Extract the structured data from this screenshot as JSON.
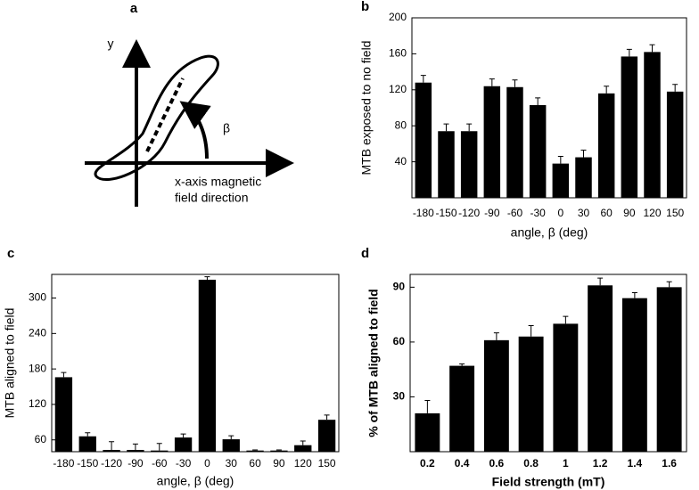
{
  "diagram": {
    "panel_label": "a",
    "y_label": "y",
    "angle_label": "β",
    "caption": [
      "x-axis magnetic",
      "field direction"
    ]
  },
  "chart_data": [
    {
      "type": "bar",
      "panel_label": "b",
      "xlabel": "angle, β (deg)",
      "ylabel": "MTB exposed to no field",
      "categories": [
        "-180",
        "-150",
        "-120",
        "-90",
        "-60",
        "-30",
        "0",
        "30",
        "60",
        "90",
        "120",
        "150"
      ],
      "values": [
        128,
        74,
        74,
        124,
        123,
        103,
        38,
        45,
        116,
        157,
        162,
        118
      ],
      "errors": [
        8,
        8,
        8,
        8,
        8,
        8,
        8,
        8,
        8,
        8,
        8,
        8
      ],
      "color": "#000000",
      "ylim": [
        0,
        200
      ],
      "yticks": [
        40,
        80,
        120,
        160,
        200
      ],
      "bold_labels": false
    },
    {
      "type": "bar",
      "panel_label": "c",
      "xlabel": "angle, β (deg)",
      "ylabel": "MTB aligned to field",
      "categories": [
        "-180",
        "-150",
        "-120",
        "-90",
        "-60",
        "-30",
        "0",
        "30",
        "60",
        "90",
        "120",
        "150"
      ],
      "values": [
        166,
        66,
        43,
        43,
        42,
        64,
        331,
        61,
        42,
        42,
        51,
        94
      ],
      "errors": [
        8,
        6,
        14,
        10,
        12,
        6,
        5,
        6,
        1,
        1,
        7,
        8
      ],
      "color": "#000000",
      "ylim": [
        40,
        340
      ],
      "yticks": [
        60,
        120,
        180,
        240,
        300
      ],
      "bold_labels": false
    },
    {
      "type": "bar",
      "panel_label": "d",
      "xlabel": "Field strength (mT)",
      "ylabel": "% of MTB aligned to field",
      "categories": [
        "0.2",
        "0.4",
        "0.6",
        "0.8",
        "1",
        "1.2",
        "1.4",
        "1.6"
      ],
      "values": [
        21,
        47,
        61,
        63,
        70,
        91,
        84,
        90
      ],
      "errors": [
        7,
        1,
        4,
        6,
        4,
        4,
        3,
        3
      ],
      "color": "#000000",
      "ylim": [
        0,
        97
      ],
      "yticks": [
        30,
        60,
        90
      ],
      "bold_labels": true
    }
  ]
}
